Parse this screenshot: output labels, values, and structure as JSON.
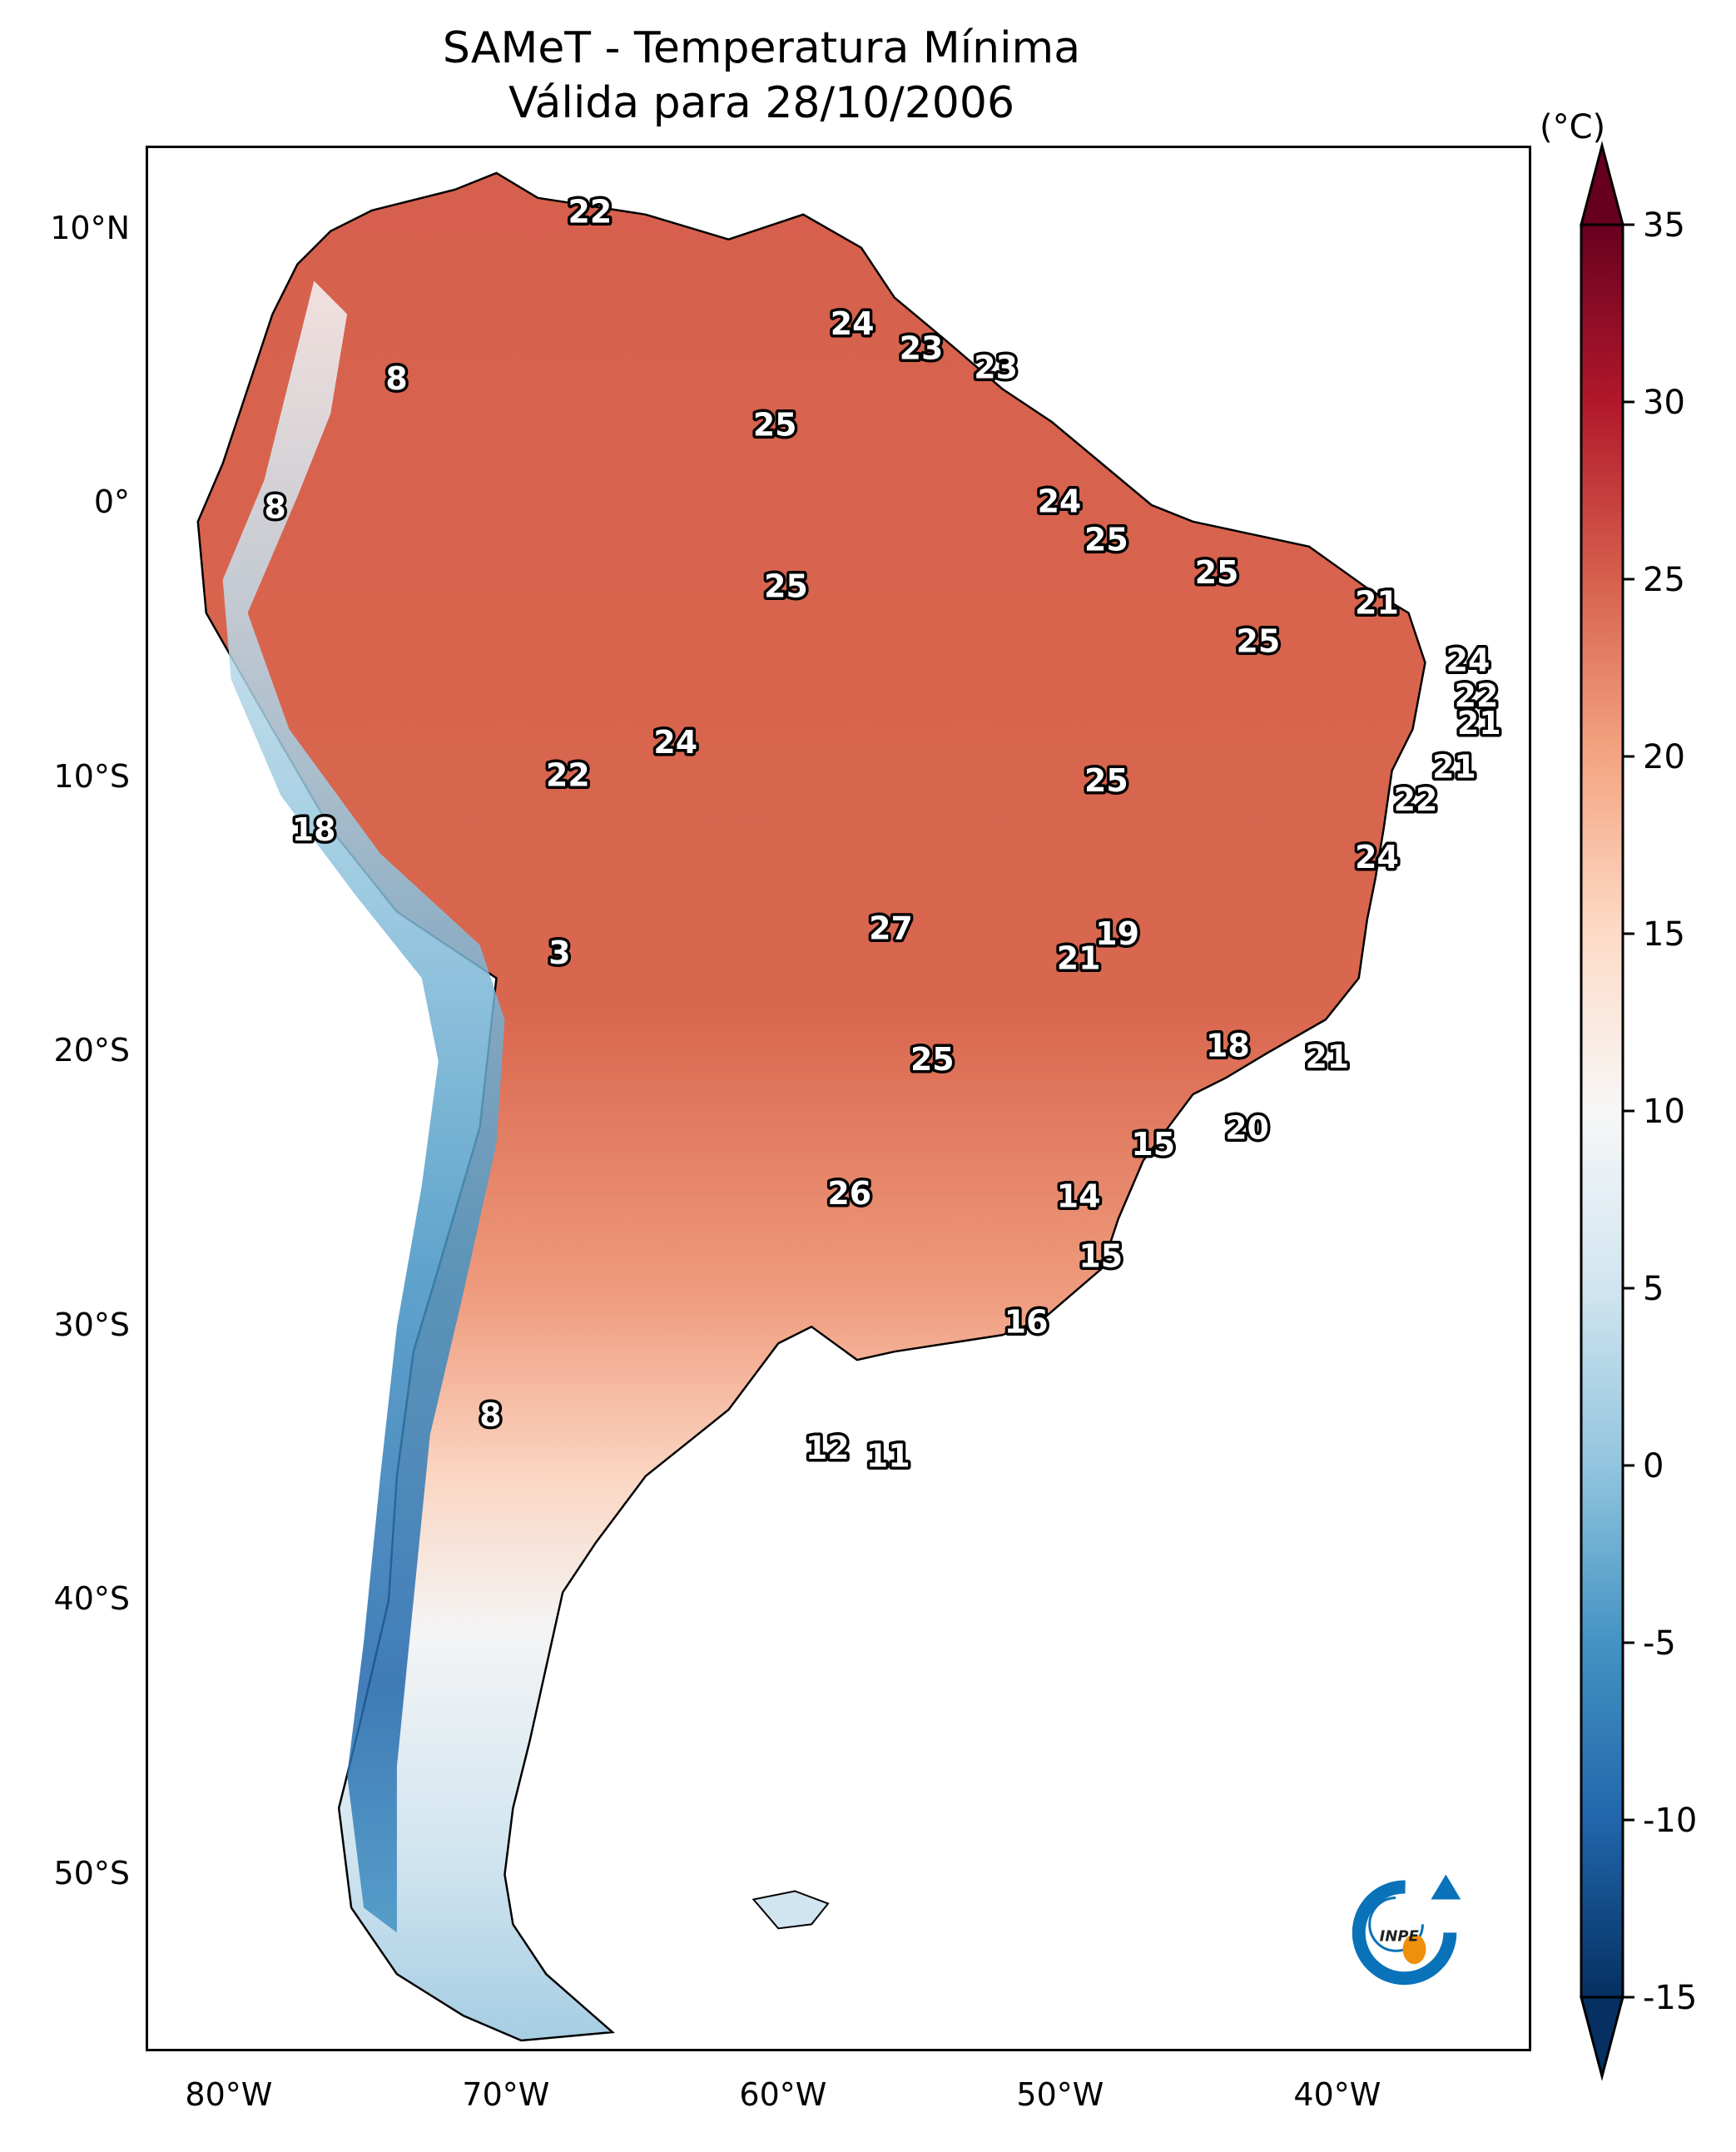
{
  "title": {
    "line1": "SAMeT - Temperatura Mínima",
    "line2": "Válida para 28/10/2006"
  },
  "map": {
    "extent": {
      "lon_min": -83,
      "lon_max": -33,
      "lat_min": -56.5,
      "lat_max": 13
    },
    "lat_ticks": [
      {
        "lat": 10,
        "label": "10°N"
      },
      {
        "lat": 0,
        "label": "0°"
      },
      {
        "lat": -10,
        "label": "10°S"
      },
      {
        "lat": -20,
        "label": "20°S"
      },
      {
        "lat": -30,
        "label": "30°S"
      },
      {
        "lat": -40,
        "label": "40°S"
      },
      {
        "lat": -50,
        "label": "50°S"
      }
    ],
    "lon_ticks": [
      {
        "lon": -80,
        "label": "80°W"
      },
      {
        "lon": -70,
        "label": "70°W"
      },
      {
        "lon": -60,
        "label": "60°W"
      },
      {
        "lon": -50,
        "label": "50°W"
      },
      {
        "lon": -40,
        "label": "40°W"
      }
    ],
    "logo": {
      "text": "INPE",
      "ring_color": "#0a72b8",
      "dot_color": "#f0900a"
    }
  },
  "colorbar": {
    "unit": "(°C)",
    "min": -15,
    "max": 35,
    "extend": "both",
    "ticks": [
      35,
      30,
      25,
      20,
      15,
      10,
      5,
      0,
      -5,
      -10,
      -15
    ],
    "tick_labels": [
      "35",
      "30",
      "25",
      "20",
      "15",
      "10",
      "5",
      "0",
      "-5",
      "-10",
      "-15"
    ],
    "colors": [
      "#053061",
      "#2166ac",
      "#4393c3",
      "#92c5de",
      "#d1e5f0",
      "#f7f7f7",
      "#fddbc7",
      "#f4a582",
      "#d6604d",
      "#b2182b",
      "#67001f"
    ]
  },
  "chart_data": {
    "type": "heatmap",
    "title": "SAMeT - Temperatura Mínima — Válida para 28/10/2006",
    "colorbar_label": "(°C)",
    "value_range": [
      -15,
      35
    ],
    "labeled_points": [
      {
        "lon": -67.0,
        "lat": 10.6,
        "value": 22
      },
      {
        "lon": -74.0,
        "lat": 4.5,
        "value": 8
      },
      {
        "lon": -78.4,
        "lat": -0.2,
        "value": 8
      },
      {
        "lon": -57.5,
        "lat": 6.5,
        "value": 24
      },
      {
        "lon": -55.0,
        "lat": 5.6,
        "value": 23
      },
      {
        "lon": -52.3,
        "lat": 4.9,
        "value": 23
      },
      {
        "lon": -60.3,
        "lat": 2.8,
        "value": 25
      },
      {
        "lon": -50.0,
        "lat": 0.0,
        "value": 24
      },
      {
        "lon": -48.3,
        "lat": -1.4,
        "value": 25
      },
      {
        "lon": -59.9,
        "lat": -3.1,
        "value": 25
      },
      {
        "lon": -44.3,
        "lat": -2.6,
        "value": 25
      },
      {
        "lon": -42.8,
        "lat": -5.1,
        "value": 25
      },
      {
        "lon": -38.5,
        "lat": -3.7,
        "value": 21
      },
      {
        "lon": -35.2,
        "lat": -5.8,
        "value": 24
      },
      {
        "lon": -34.9,
        "lat": -7.1,
        "value": 22
      },
      {
        "lon": -34.8,
        "lat": -8.1,
        "value": 21
      },
      {
        "lon": -35.7,
        "lat": -9.7,
        "value": 21
      },
      {
        "lon": -37.1,
        "lat": -10.9,
        "value": 22
      },
      {
        "lon": -38.5,
        "lat": -13.0,
        "value": 24
      },
      {
        "lon": -63.9,
        "lat": -8.8,
        "value": 24
      },
      {
        "lon": -67.8,
        "lat": -10.0,
        "value": 22
      },
      {
        "lon": -48.3,
        "lat": -10.2,
        "value": 25
      },
      {
        "lon": -77.0,
        "lat": -12.0,
        "value": 18
      },
      {
        "lon": -68.1,
        "lat": -16.5,
        "value": 3
      },
      {
        "lon": -56.1,
        "lat": -15.6,
        "value": 27
      },
      {
        "lon": -47.9,
        "lat": -15.8,
        "value": 19
      },
      {
        "lon": -49.3,
        "lat": -16.7,
        "value": 21
      },
      {
        "lon": -54.6,
        "lat": -20.4,
        "value": 25
      },
      {
        "lon": -43.9,
        "lat": -19.9,
        "value": 18
      },
      {
        "lon": -40.3,
        "lat": -20.3,
        "value": 21
      },
      {
        "lon": -43.2,
        "lat": -22.9,
        "value": 20
      },
      {
        "lon": -46.6,
        "lat": -23.5,
        "value": 15
      },
      {
        "lon": -57.6,
        "lat": -25.3,
        "value": 26
      },
      {
        "lon": -49.3,
        "lat": -25.4,
        "value": 14
      },
      {
        "lon": -48.5,
        "lat": -27.6,
        "value": 15
      },
      {
        "lon": -51.2,
        "lat": -30.0,
        "value": 16
      },
      {
        "lon": -70.6,
        "lat": -33.4,
        "value": 8
      },
      {
        "lon": -58.4,
        "lat": -34.6,
        "value": 12
      },
      {
        "lon": -56.2,
        "lat": -34.9,
        "value": 11
      }
    ]
  }
}
